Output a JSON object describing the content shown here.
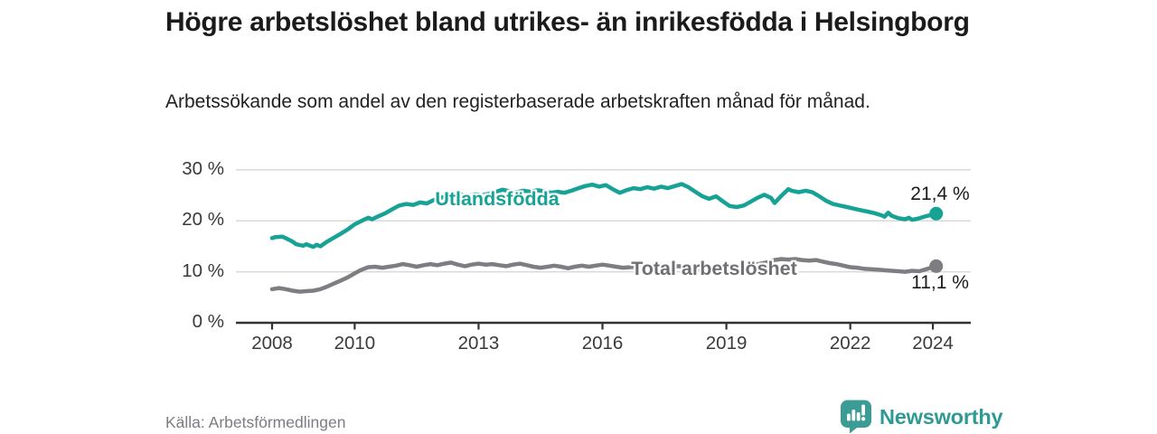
{
  "header": {
    "title": "Högre arbetslöshet bland utrikes- än inrikesfödda i Helsingborg",
    "subtitle": "Arbetssökande som andel av den registerbaserade arbetskraften månad för månad."
  },
  "footer": {
    "source": "Källa: Arbetsförmedlingen",
    "brand": "Newsworthy"
  },
  "colors": {
    "series1": "#16a396",
    "series2": "#7e7e82",
    "grid": "#d9d9d9",
    "axis": "#333333",
    "brand": "#3a9c95"
  },
  "chart_data": {
    "type": "line",
    "title": "Högre arbetslöshet bland utrikes- än inrikesfödda i Helsingborg",
    "subtitle": "Arbetssökande som andel av den registerbaserade arbetskraften månad för månad.",
    "xlabel": "",
    "ylabel": "",
    "ylim": [
      0,
      30
    ],
    "xlim": [
      2006.8,
      2025.0
    ],
    "grid": "horizontal",
    "legend_position": "inline-labels",
    "y_ticks": [
      {
        "value": 30,
        "label": "30 %"
      },
      {
        "value": 20,
        "label": "20 %"
      },
      {
        "value": 10,
        "label": "10 %"
      },
      {
        "value": 0,
        "label": "0 %"
      }
    ],
    "x_ticks": [
      {
        "year": 2008,
        "label": "2008"
      },
      {
        "year": 2010,
        "label": "2010"
      },
      {
        "year": 2013,
        "label": "2013"
      },
      {
        "year": 2016,
        "label": "2016"
      },
      {
        "year": 2019,
        "label": "2019"
      },
      {
        "year": 2022,
        "label": "2022"
      },
      {
        "year": 2024,
        "label": "2024"
      }
    ],
    "series": [
      {
        "name": "Utlandsfödda",
        "color": "#16a396",
        "end_label": "21,4 %",
        "end_value": 21.4,
        "points": [
          [
            2008.0,
            16.6
          ],
          [
            2008.08,
            16.8
          ],
          [
            2008.25,
            16.9
          ],
          [
            2008.33,
            16.6
          ],
          [
            2008.5,
            15.9
          ],
          [
            2008.58,
            15.4
          ],
          [
            2008.75,
            15.1
          ],
          [
            2008.83,
            15.4
          ],
          [
            2008.92,
            15.1
          ],
          [
            2009.0,
            14.9
          ],
          [
            2009.08,
            15.3
          ],
          [
            2009.17,
            15.0
          ],
          [
            2009.33,
            15.9
          ],
          [
            2009.5,
            16.7
          ],
          [
            2009.67,
            17.5
          ],
          [
            2009.83,
            18.3
          ],
          [
            2010.0,
            19.3
          ],
          [
            2010.17,
            20.0
          ],
          [
            2010.33,
            20.6
          ],
          [
            2010.42,
            20.3
          ],
          [
            2010.58,
            20.9
          ],
          [
            2010.75,
            21.5
          ],
          [
            2010.92,
            22.3
          ],
          [
            2011.08,
            23.0
          ],
          [
            2011.25,
            23.3
          ],
          [
            2011.42,
            23.1
          ],
          [
            2011.58,
            23.6
          ],
          [
            2011.75,
            23.4
          ],
          [
            2011.92,
            24.1
          ],
          [
            2012.08,
            24.5
          ],
          [
            2012.25,
            24.9
          ],
          [
            2012.42,
            24.7
          ],
          [
            2012.58,
            25.1
          ],
          [
            2012.75,
            24.9
          ],
          [
            2012.92,
            25.2
          ],
          [
            2013.08,
            25.0
          ],
          [
            2013.25,
            25.3
          ],
          [
            2013.42,
            25.7
          ],
          [
            2013.58,
            26.1
          ],
          [
            2013.75,
            25.8
          ],
          [
            2013.92,
            25.6
          ],
          [
            2014.08,
            25.9
          ],
          [
            2014.25,
            25.7
          ],
          [
            2014.42,
            26.0
          ],
          [
            2014.58,
            25.8
          ],
          [
            2014.75,
            25.5
          ],
          [
            2014.92,
            25.7
          ],
          [
            2015.08,
            25.5
          ],
          [
            2015.25,
            25.9
          ],
          [
            2015.42,
            26.4
          ],
          [
            2015.58,
            26.8
          ],
          [
            2015.75,
            27.1
          ],
          [
            2015.92,
            26.7
          ],
          [
            2016.08,
            27.0
          ],
          [
            2016.25,
            26.2
          ],
          [
            2016.42,
            25.5
          ],
          [
            2016.58,
            26.0
          ],
          [
            2016.75,
            26.4
          ],
          [
            2016.92,
            26.2
          ],
          [
            2017.08,
            26.6
          ],
          [
            2017.25,
            26.3
          ],
          [
            2017.42,
            26.7
          ],
          [
            2017.58,
            26.4
          ],
          [
            2017.75,
            26.8
          ],
          [
            2017.92,
            27.2
          ],
          [
            2018.08,
            26.6
          ],
          [
            2018.25,
            25.7
          ],
          [
            2018.42,
            24.8
          ],
          [
            2018.58,
            24.3
          ],
          [
            2018.75,
            24.8
          ],
          [
            2018.92,
            23.8
          ],
          [
            2019.08,
            22.9
          ],
          [
            2019.25,
            22.7
          ],
          [
            2019.42,
            23.0
          ],
          [
            2019.58,
            23.7
          ],
          [
            2019.75,
            24.5
          ],
          [
            2019.92,
            25.1
          ],
          [
            2020.08,
            24.5
          ],
          [
            2020.17,
            23.5
          ],
          [
            2020.33,
            24.9
          ],
          [
            2020.5,
            26.2
          ],
          [
            2020.58,
            25.9
          ],
          [
            2020.75,
            25.6
          ],
          [
            2020.92,
            25.9
          ],
          [
            2021.08,
            25.6
          ],
          [
            2021.25,
            24.8
          ],
          [
            2021.42,
            23.9
          ],
          [
            2021.58,
            23.3
          ],
          [
            2021.75,
            23.0
          ],
          [
            2021.92,
            22.7
          ],
          [
            2022.08,
            22.4
          ],
          [
            2022.25,
            22.1
          ],
          [
            2022.42,
            21.8
          ],
          [
            2022.58,
            21.5
          ],
          [
            2022.75,
            21.1
          ],
          [
            2022.83,
            20.8
          ],
          [
            2022.92,
            21.6
          ],
          [
            2023.0,
            21.0
          ],
          [
            2023.17,
            20.5
          ],
          [
            2023.33,
            20.3
          ],
          [
            2023.42,
            20.6
          ],
          [
            2023.5,
            20.2
          ],
          [
            2023.67,
            20.5
          ],
          [
            2023.83,
            20.9
          ],
          [
            2024.0,
            21.2
          ],
          [
            2024.08,
            21.4
          ]
        ]
      },
      {
        "name": "Total arbetslöshet",
        "color": "#7e7e82",
        "end_label": "11,1 %",
        "end_value": 11.1,
        "points": [
          [
            2008.0,
            6.6
          ],
          [
            2008.17,
            6.8
          ],
          [
            2008.33,
            6.6
          ],
          [
            2008.5,
            6.3
          ],
          [
            2008.67,
            6.1
          ],
          [
            2008.83,
            6.2
          ],
          [
            2009.0,
            6.3
          ],
          [
            2009.17,
            6.6
          ],
          [
            2009.33,
            7.1
          ],
          [
            2009.5,
            7.7
          ],
          [
            2009.67,
            8.3
          ],
          [
            2009.83,
            8.9
          ],
          [
            2010.0,
            9.7
          ],
          [
            2010.17,
            10.4
          ],
          [
            2010.33,
            10.9
          ],
          [
            2010.5,
            11.0
          ],
          [
            2010.67,
            10.8
          ],
          [
            2010.83,
            11.0
          ],
          [
            2011.0,
            11.2
          ],
          [
            2011.17,
            11.5
          ],
          [
            2011.33,
            11.3
          ],
          [
            2011.5,
            11.0
          ],
          [
            2011.67,
            11.3
          ],
          [
            2011.83,
            11.5
          ],
          [
            2012.0,
            11.3
          ],
          [
            2012.17,
            11.6
          ],
          [
            2012.33,
            11.8
          ],
          [
            2012.5,
            11.4
          ],
          [
            2012.67,
            11.1
          ],
          [
            2012.83,
            11.4
          ],
          [
            2013.0,
            11.6
          ],
          [
            2013.17,
            11.4
          ],
          [
            2013.33,
            11.5
          ],
          [
            2013.5,
            11.3
          ],
          [
            2013.67,
            11.1
          ],
          [
            2013.83,
            11.4
          ],
          [
            2014.0,
            11.6
          ],
          [
            2014.17,
            11.3
          ],
          [
            2014.33,
            11.0
          ],
          [
            2014.5,
            10.8
          ],
          [
            2014.67,
            11.0
          ],
          [
            2014.83,
            11.2
          ],
          [
            2015.0,
            11.0
          ],
          [
            2015.17,
            10.7
          ],
          [
            2015.33,
            11.0
          ],
          [
            2015.5,
            11.2
          ],
          [
            2015.67,
            11.0
          ],
          [
            2015.83,
            11.2
          ],
          [
            2016.0,
            11.4
          ],
          [
            2016.17,
            11.2
          ],
          [
            2016.33,
            11.0
          ],
          [
            2016.5,
            10.8
          ],
          [
            2016.67,
            10.9
          ],
          [
            2016.83,
            11.0
          ],
          [
            2017.0,
            11.1
          ],
          [
            2017.17,
            10.9
          ],
          [
            2017.33,
            11.0
          ],
          [
            2017.5,
            10.8
          ],
          [
            2017.67,
            10.9
          ],
          [
            2017.83,
            11.1
          ],
          [
            2018.0,
            11.0
          ],
          [
            2018.17,
            10.8
          ],
          [
            2018.33,
            10.6
          ],
          [
            2018.5,
            10.5
          ],
          [
            2018.67,
            10.6
          ],
          [
            2018.83,
            10.7
          ],
          [
            2019.0,
            10.6
          ],
          [
            2019.17,
            10.7
          ],
          [
            2019.33,
            10.9
          ],
          [
            2019.5,
            11.1
          ],
          [
            2019.67,
            11.3
          ],
          [
            2019.83,
            11.6
          ],
          [
            2020.0,
            11.9
          ],
          [
            2020.17,
            12.3
          ],
          [
            2020.33,
            12.5
          ],
          [
            2020.5,
            12.4
          ],
          [
            2020.67,
            12.5
          ],
          [
            2020.83,
            12.3
          ],
          [
            2021.0,
            12.2
          ],
          [
            2021.17,
            12.3
          ],
          [
            2021.33,
            12.0
          ],
          [
            2021.5,
            11.7
          ],
          [
            2021.67,
            11.5
          ],
          [
            2021.83,
            11.2
          ],
          [
            2022.0,
            10.9
          ],
          [
            2022.17,
            10.8
          ],
          [
            2022.33,
            10.6
          ],
          [
            2022.5,
            10.5
          ],
          [
            2022.67,
            10.4
          ],
          [
            2022.83,
            10.3
          ],
          [
            2023.0,
            10.2
          ],
          [
            2023.17,
            10.1
          ],
          [
            2023.33,
            10.0
          ],
          [
            2023.5,
            10.2
          ],
          [
            2023.67,
            10.1
          ],
          [
            2023.83,
            10.5
          ],
          [
            2024.0,
            10.9
          ],
          [
            2024.08,
            11.1
          ]
        ]
      }
    ]
  }
}
